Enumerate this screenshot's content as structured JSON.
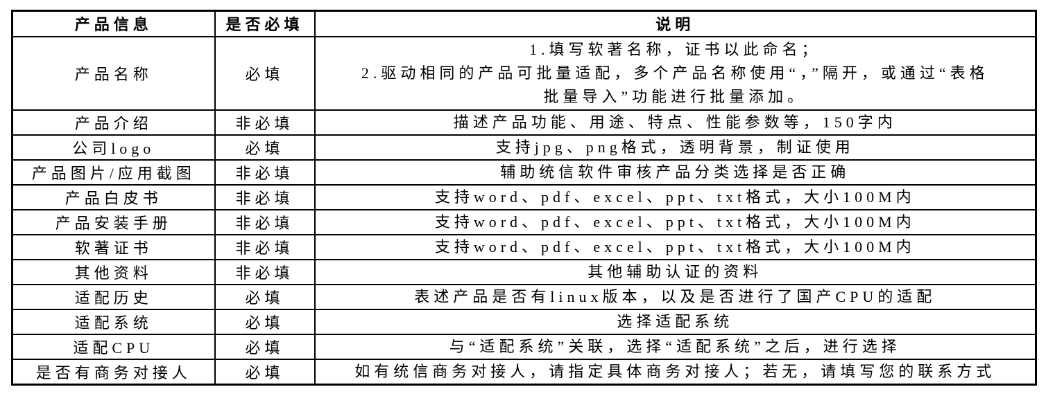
{
  "table": {
    "headers": {
      "info": "产品信息",
      "required": "是否必填",
      "description": "说明"
    },
    "required_values": {
      "mandatory": "必填",
      "optional": "非必填"
    },
    "rows": [
      {
        "name": "产品名称",
        "required": "必填",
        "description": "1.填写软著名称，证书以此命名；\n2.驱动相同的产品可批量适配，多个产品名称使用“，”隔开，或通过“表格\n批量导入”功能进行批量添加。"
      },
      {
        "name": "产品介绍",
        "required": "非必填",
        "description": "描述产品功能、用途、特点、性能参数等，150字内"
      },
      {
        "name": "公司logo",
        "required": "必填",
        "description": "支持jpg、png格式，透明背景，制证使用"
      },
      {
        "name": "产品图片/应用截图",
        "required": "非必填",
        "description": "辅助统信软件审核产品分类选择是否正确"
      },
      {
        "name": "产品白皮书",
        "required": "非必填",
        "description": "支持word、pdf、excel、ppt、txt格式，大小100M内"
      },
      {
        "name": "产品安装手册",
        "required": "非必填",
        "description": "支持word、pdf、excel、ppt、txt格式，大小100M内"
      },
      {
        "name": "软著证书",
        "required": "非必填",
        "description": "支持word、pdf、excel、ppt、txt格式，大小100M内"
      },
      {
        "name": "其他资料",
        "required": "非必填",
        "description": "其他辅助认证的资料"
      },
      {
        "name": "适配历史",
        "required": "必填",
        "description": "表述产品是否有linux版本，以及是否进行了国产CPU的适配"
      },
      {
        "name": "适配系统",
        "required": "必填",
        "description": "选择适配系统"
      },
      {
        "name": "适配CPU",
        "required": "必填",
        "description": "与“适配系统”关联，选择“适配系统”之后，进行选择"
      },
      {
        "name": "是否有商务对接人",
        "required": "必填",
        "description": "如有统信商务对接人，请指定具体商务对接人；若无，请填写您的联系方式"
      }
    ]
  }
}
